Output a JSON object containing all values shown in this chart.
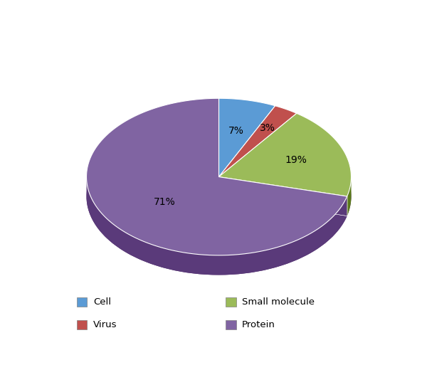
{
  "labels": [
    "Cell",
    "Virus",
    "Small molecule",
    "Protein"
  ],
  "values": [
    7,
    3,
    19,
    71
  ],
  "colors": [
    "#5B9BD5",
    "#C0504D",
    "#9BBB59",
    "#8064A2"
  ],
  "dark_colors": [
    "#2E6EA6",
    "#8B1A1A",
    "#5A7A1A",
    "#5A3A7A"
  ],
  "pct_labels": [
    "7%",
    "3%",
    "19%",
    "71%"
  ],
  "legend_labels": [
    "Cell",
    "Virus",
    "Small molecule",
    "Protein"
  ],
  "background_color": "#FFFFFF",
  "startangle": 90,
  "shadow_color": "#4A2060"
}
